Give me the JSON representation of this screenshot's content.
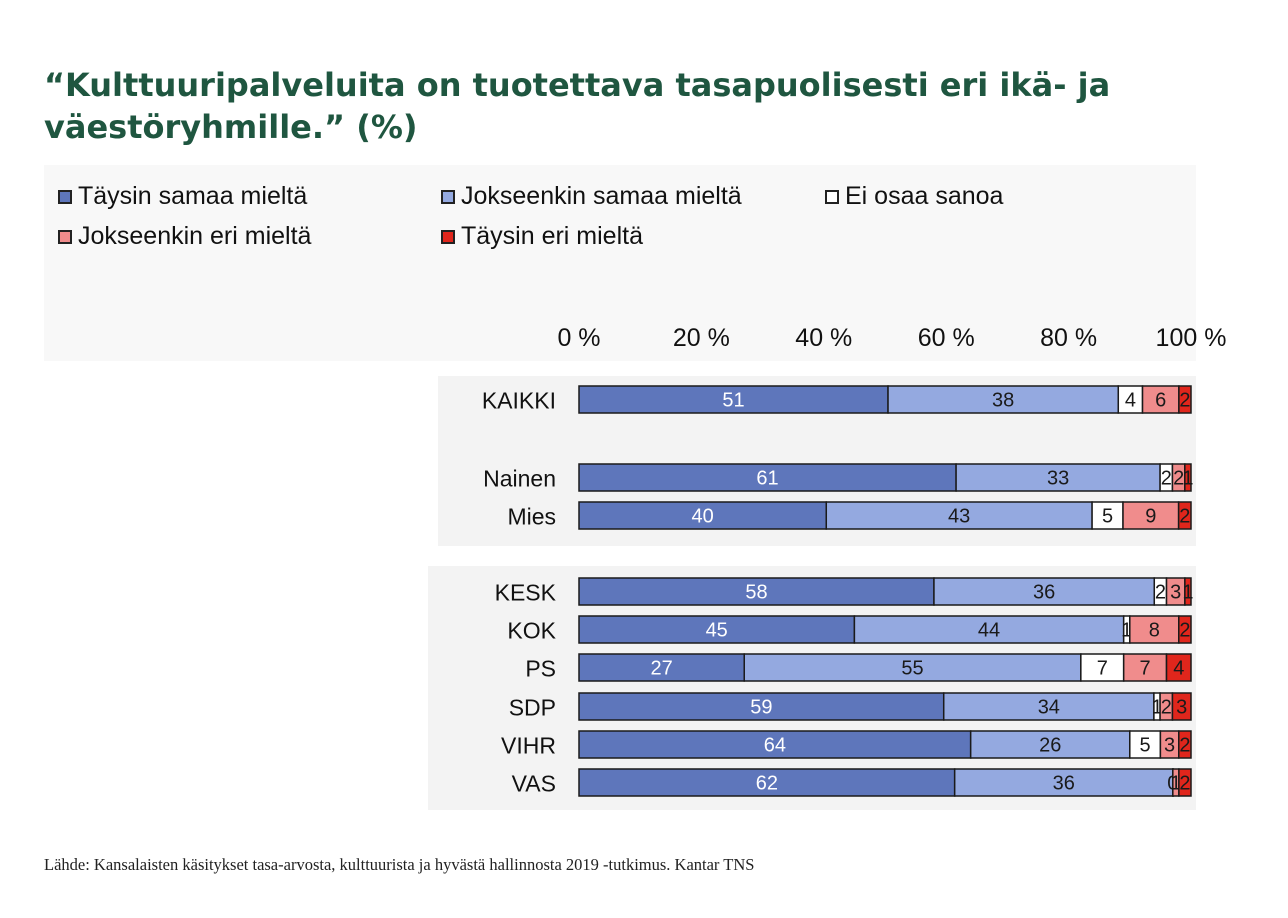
{
  "title": "“Kulttuuripalveluita on tuotettava tasapuolisesti eri ikä- ja väestöryhmille.” (%)",
  "source": "Lähde: Kansalaisten käsitykset tasa-arvosta, kulttuurista ja hyvästä hallinnosta 2019 -tutkimus. Kantar TNS",
  "chart_data": {
    "type": "bar",
    "orientation": "horizontal",
    "stacked": true,
    "xlim": [
      0,
      100
    ],
    "x_ticks": [
      "0 %",
      "20 %",
      "40 %",
      "60 %",
      "80 %",
      "100 %"
    ],
    "x_tick_position": "top",
    "legend_position": "top-left",
    "grid": false,
    "categories": [
      "KAIKKI",
      "Nainen",
      "Mies",
      "KESK",
      "KOK",
      "PS",
      "SDP",
      "VIHR",
      "VAS"
    ],
    "groups": [
      [
        "KAIKKI"
      ],
      [
        "Nainen",
        "Mies"
      ],
      [
        "KESK",
        "KOK",
        "PS",
        "SDP",
        "VIHR",
        "VAS"
      ]
    ],
    "series": [
      {
        "name": "Täysin samaa mieltä",
        "color": "#5e76bb",
        "values": [
          51,
          61,
          40,
          58,
          45,
          27,
          59,
          64,
          62
        ]
      },
      {
        "name": "Jokseenkin samaa mieltä",
        "color": "#94a9e0",
        "values": [
          38,
          33,
          43,
          36,
          44,
          55,
          34,
          26,
          36
        ]
      },
      {
        "name": "Ei osaa sanoa",
        "color": "#ffffff",
        "values": [
          4,
          2,
          5,
          2,
          1,
          7,
          1,
          5,
          0
        ]
      },
      {
        "name": "Jokseenkin eri mieltä",
        "color": "#f08c8c",
        "values": [
          6,
          2,
          9,
          3,
          8,
          7,
          2,
          3,
          1
        ]
      },
      {
        "name": "Täysin eri mieltä",
        "color": "#e0261c",
        "values": [
          2,
          1,
          2,
          1,
          2,
          4,
          3,
          2,
          2
        ]
      }
    ]
  }
}
